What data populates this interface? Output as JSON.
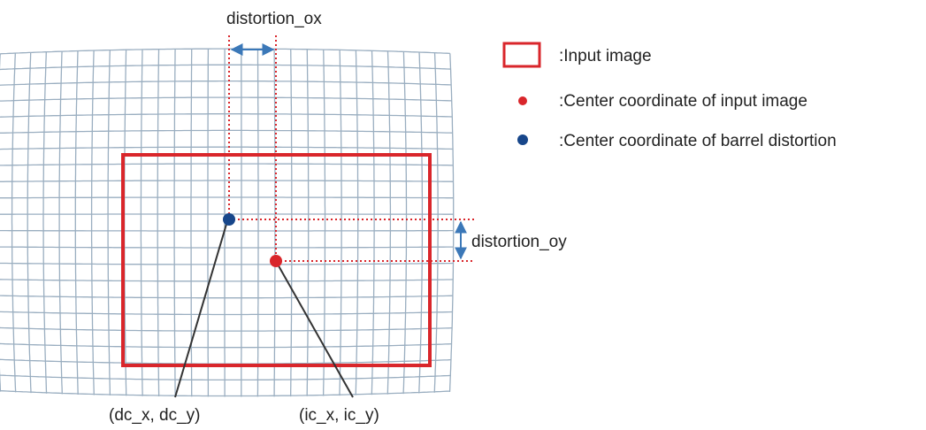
{
  "labels": {
    "distortion_ox": "distortion_ox",
    "distortion_oy": "distortion_oy",
    "dc": "(dc_x, dc_y)",
    "ic": "(ic_x, ic_y)"
  },
  "legend": {
    "input_image": ":Input image",
    "input_center": ":Center coordinate of input image",
    "barrel_center": ":Center coordinate of barrel distortion"
  },
  "colors": {
    "grid": "#9aaec0",
    "red": "#d9262b",
    "blue": "#17468a",
    "dim_arrow": "#3b78b8",
    "leader": "#333333"
  }
}
